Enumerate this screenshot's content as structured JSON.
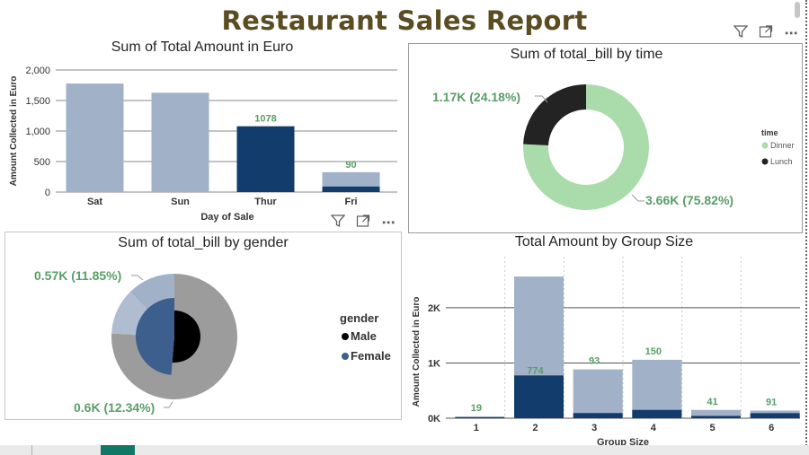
{
  "report": {
    "title": "Restaurant Sales Report"
  },
  "icons": {
    "filter": "filter-icon",
    "focus": "focus-mode-icon",
    "more": "more-options-icon"
  },
  "colors": {
    "light_bar": "#a1b1c8",
    "dark_bar": "#123c6b",
    "dinner": "#a9dcaa",
    "lunch": "#232323",
    "male": "#000000",
    "female": "#3d5f8e",
    "label_green": "#5a9e68"
  },
  "chart_data": [
    {
      "id": "day",
      "type": "bar",
      "title": "Sum of Total Amount in Euro",
      "xlabel": "Day of Sale",
      "ylabel": "Amount Collected in Euro",
      "categories": [
        "Sat",
        "Sun",
        "Thur",
        "Fri"
      ],
      "yticks": [
        "0",
        "500",
        "1,000",
        "1,500",
        "2,000"
      ],
      "ytick_values": [
        0,
        500,
        1000,
        1500,
        2000
      ],
      "ylim": [
        0,
        2000
      ],
      "series": [
        {
          "values": [
            1778,
            1627,
            0,
            325
          ]
        },
        {
          "values": [
            0,
            0,
            1078,
            90
          ]
        }
      ],
      "data_labels": [
        "",
        "",
        "1078",
        "90"
      ],
      "grid": true
    },
    {
      "id": "time",
      "type": "pie",
      "title": "Sum of total_bill by time",
      "legend_title": "time",
      "legend_position": "right",
      "slices": [
        {
          "name": "Dinner",
          "value": 3.66,
          "label": "3.66K (75.82%)"
        },
        {
          "name": "Lunch",
          "value": 1.17,
          "label": "1.17K (24.18%)"
        }
      ]
    },
    {
      "id": "gender",
      "type": "pie",
      "title": "Sum of total_bill by gender",
      "legend_title": "gender",
      "legend_position": "right",
      "legend": [
        "Male",
        "Female"
      ],
      "outer_labels": [
        "0.57K (11.85%)",
        "0.6K (12.34%)"
      ],
      "outer_ring": [
        {
          "value": 0.57
        },
        {
          "value": 0.6
        },
        {
          "value": 3.66
        }
      ],
      "inner": [
        {
          "name": "Male",
          "value": 0.6
        },
        {
          "name": "Female",
          "value": 0.57
        }
      ]
    },
    {
      "id": "group",
      "type": "bar",
      "title": "Total Amount by Group Size",
      "xlabel": "Group Size",
      "ylabel": "Amount Collected in Euro",
      "categories": [
        "1",
        "2",
        "3",
        "4",
        "5",
        "6"
      ],
      "yticks": [
        "0K",
        "1K",
        "2K"
      ],
      "ytick_values": [
        0,
        1000,
        2000
      ],
      "ylim": [
        0,
        2600
      ],
      "series": [
        {
          "values": [
            29,
            2565,
            884,
            1058,
            150,
            139
          ]
        },
        {
          "values": [
            19,
            774,
            93,
            150,
            41,
            91
          ]
        }
      ],
      "data_labels": [
        "19",
        "774",
        "93",
        "150",
        "41",
        "91"
      ],
      "grid": true
    }
  ]
}
